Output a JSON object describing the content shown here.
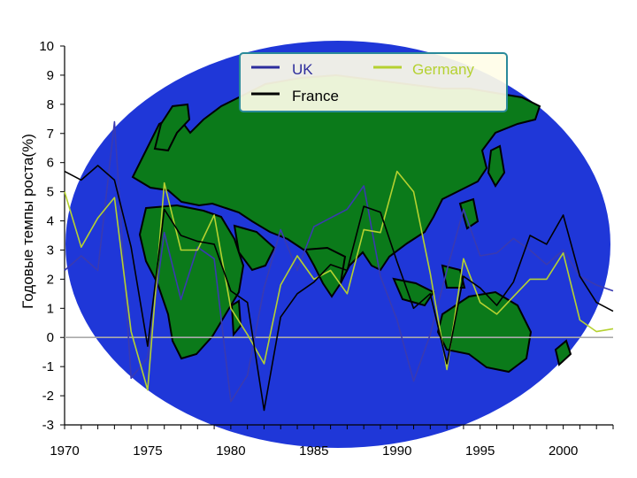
{
  "chart_data": {
    "type": "line",
    "title": "",
    "xlabel": "",
    "ylabel": "Годовые темпы роста(%)",
    "xlim": [
      1970,
      2003
    ],
    "ylim": [
      -3,
      10
    ],
    "x_ticks": [
      "1970",
      "1975",
      "1980",
      "1985",
      "1990",
      "1995",
      "2000"
    ],
    "y_ticks": [
      "-3",
      "-2",
      "-1",
      "0",
      "1",
      "2",
      "3",
      "4",
      "5",
      "6",
      "7",
      "8",
      "9",
      "10"
    ],
    "legend": {
      "placement": "top",
      "entries": [
        {
          "label": "UK",
          "color": "#2c2c9c"
        },
        {
          "label": "Germany",
          "color": "#b5d130"
        },
        {
          "label": "France",
          "color": "#000000"
        }
      ]
    },
    "x": [
      1970,
      1971,
      1972,
      1973,
      1974,
      1975,
      1976,
      1977,
      1978,
      1979,
      1980,
      1981,
      1982,
      1983,
      1984,
      1985,
      1986,
      1987,
      1988,
      1989,
      1990,
      1991,
      1992,
      1993,
      1994,
      1995,
      1996,
      1997,
      1998,
      1999,
      2000,
      2001,
      2002,
      2003
    ],
    "series": [
      {
        "name": "UK",
        "color": "#3a3ab0",
        "values": [
          2.3,
          2.8,
          2.3,
          7.4,
          -1.4,
          -0.7,
          3.6,
          1.3,
          3.1,
          2.7,
          -2.2,
          -1.3,
          1.7,
          3.7,
          2.3,
          3.8,
          4.1,
          4.4,
          5.2,
          2.1,
          0.6,
          -1.5,
          0.1,
          2.3,
          4.4,
          2.8,
          2.9,
          3.4,
          3.0,
          2.5,
          3.0,
          2.1,
          1.8,
          1.6
        ]
      },
      {
        "name": "Germany",
        "color": "#b5d130",
        "values": [
          5.0,
          3.1,
          4.1,
          4.8,
          0.2,
          -1.8,
          5.3,
          3.0,
          3.0,
          4.2,
          1.0,
          0.1,
          -0.9,
          1.8,
          2.8,
          2.0,
          2.3,
          1.5,
          3.7,
          3.6,
          5.7,
          5.0,
          2.2,
          -1.1,
          2.7,
          1.2,
          0.8,
          1.4,
          2.0,
          2.0,
          2.9,
          0.6,
          0.2,
          0.3
        ]
      },
      {
        "name": "France",
        "color": "#000000",
        "values": [
          5.7,
          5.4,
          5.9,
          5.4,
          3.1,
          -0.3,
          4.4,
          3.5,
          3.3,
          3.2,
          1.6,
          1.2,
          -2.5,
          0.7,
          1.5,
          1.9,
          2.5,
          2.3,
          4.5,
          4.3,
          2.6,
          1.0,
          1.5,
          -0.9,
          2.1,
          1.7,
          1.1,
          1.9,
          3.5,
          3.2,
          4.2,
          2.1,
          1.2,
          0.9
        ]
      }
    ]
  },
  "background": {
    "ocean_color": "#1f37d8",
    "land_color": "#0b7a1a",
    "coast_color": "#000000"
  }
}
